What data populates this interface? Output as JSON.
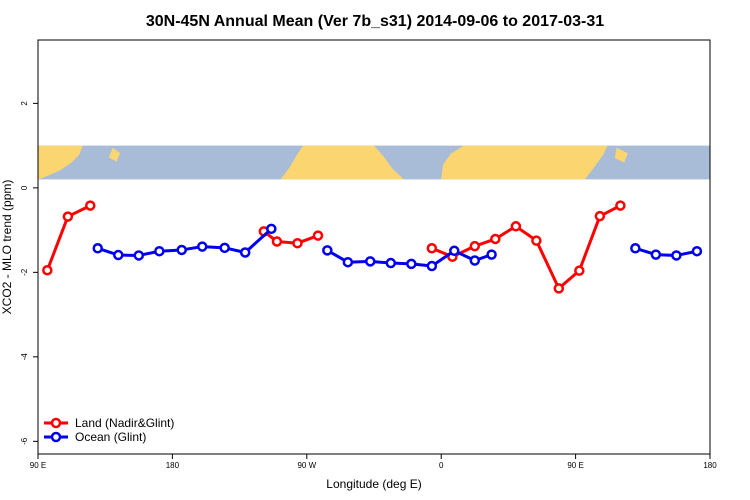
{
  "chart_data": {
    "type": "line",
    "title": "30N-45N Annual Mean (Ver 7b_s31)   2014-09-06 to 2017-03-31",
    "xlabel": "Longitude (deg E)",
    "ylabel": "XCO2 - MLO trend (ppm)",
    "xlim": [
      -90,
      270
    ],
    "ylim": [
      -6.3,
      3.5
    ],
    "x_ticks": [
      -90,
      -18,
      54,
      126,
      198,
      270
    ],
    "x_tick_labels": [
      "90 E",
      "180",
      "90 W",
      "0",
      "90 E",
      "180"
    ],
    "y_ticks": [
      -6,
      -4,
      -2,
      0,
      2
    ],
    "y_tick_labels": [
      "-6",
      "-4",
      "-2",
      "0",
      "2"
    ],
    "grid": false,
    "legend_position": "bottom-left",
    "map_strip": {
      "y_range": [
        0.2,
        1.0
      ],
      "ocean_color": "#a8bcd8",
      "land_color": "#fbd570"
    },
    "series": [
      {
        "name": "Land (Nadir&Glint)",
        "color": "#ff0000",
        "segments": [
          [
            [
              -85,
              -1.95
            ],
            [
              -74,
              -0.68
            ],
            [
              -62,
              -0.42
            ]
          ],
          [
            [
              31,
              -1.03
            ],
            [
              38,
              -1.27
            ],
            [
              49,
              -1.31
            ],
            [
              60,
              -1.13
            ]
          ],
          [
            [
              121,
              -1.43
            ],
            [
              132,
              -1.63
            ],
            [
              144,
              -1.38
            ],
            [
              155,
              -1.21
            ],
            [
              166,
              -0.91
            ],
            [
              177,
              -1.25
            ],
            [
              189,
              -2.38
            ],
            [
              200,
              -1.96
            ],
            [
              211,
              -0.67
            ],
            [
              222,
              -0.42
            ]
          ]
        ]
      },
      {
        "name": "Ocean (Glint)",
        "color": "#0000ee",
        "segments": [
          [
            [
              -58,
              -1.43
            ],
            [
              -47,
              -1.59
            ],
            [
              -36,
              -1.6
            ],
            [
              -25,
              -1.5
            ],
            [
              -13,
              -1.47
            ],
            [
              -2,
              -1.39
            ],
            [
              10,
              -1.42
            ],
            [
              21,
              -1.53
            ],
            [
              35,
              -0.97
            ]
          ],
          [
            [
              65,
              -1.48
            ],
            [
              76,
              -1.76
            ],
            [
              88,
              -1.74
            ],
            [
              99,
              -1.78
            ],
            [
              110,
              -1.8
            ],
            [
              121,
              -1.85
            ],
            [
              133,
              -1.49
            ],
            [
              144,
              -1.72
            ],
            [
              153,
              -1.58
            ]
          ],
          [
            [
              230,
              -1.43
            ],
            [
              241,
              -1.58
            ],
            [
              252,
              -1.6
            ],
            [
              263,
              -1.5
            ]
          ]
        ]
      }
    ]
  }
}
